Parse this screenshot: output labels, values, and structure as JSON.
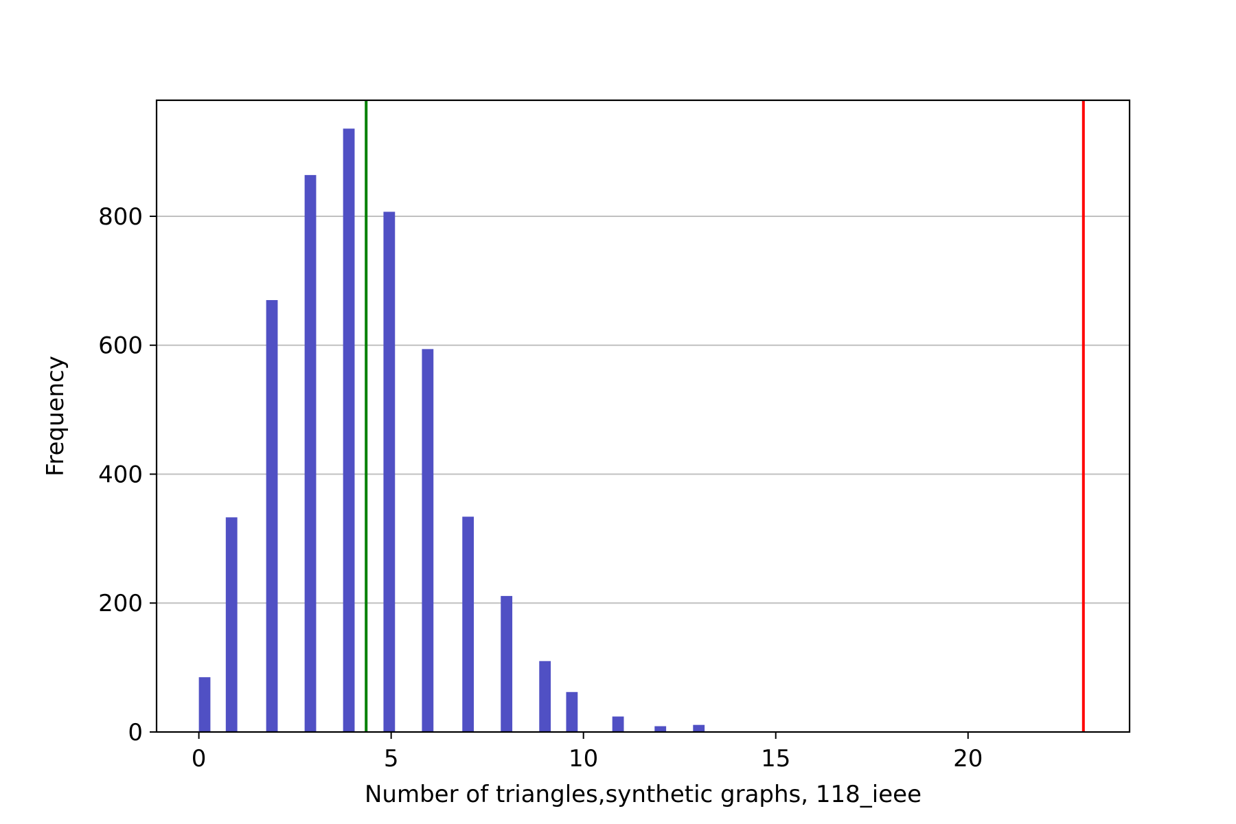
{
  "chart_data": {
    "type": "bar",
    "title": "",
    "xlabel": "Number of triangles,synthetic graphs, 118_ieee",
    "ylabel": "Frequency",
    "xlim": [
      -1.1,
      24.2
    ],
    "ylim": [
      0,
      980
    ],
    "xticks": [
      0,
      5,
      10,
      15,
      20
    ],
    "yticks": [
      0,
      200,
      400,
      600,
      800
    ],
    "grid": "horizontal",
    "bar_color": "#5050c4",
    "bar_width": 0.3,
    "bars": [
      {
        "x": 0.15,
        "value": 85
      },
      {
        "x": 0.85,
        "value": 333
      },
      {
        "x": 1.9,
        "value": 670
      },
      {
        "x": 2.9,
        "value": 864
      },
      {
        "x": 3.9,
        "value": 936
      },
      {
        "x": 4.95,
        "value": 807
      },
      {
        "x": 5.95,
        "value": 594
      },
      {
        "x": 7.0,
        "value": 334
      },
      {
        "x": 8.0,
        "value": 211
      },
      {
        "x": 9.0,
        "value": 110
      },
      {
        "x": 9.7,
        "value": 62
      },
      {
        "x": 10.9,
        "value": 24
      },
      {
        "x": 12.0,
        "value": 9
      },
      {
        "x": 13.0,
        "value": 11
      }
    ],
    "vertical_lines": [
      {
        "x": 4.35,
        "color": "#008000"
      },
      {
        "x": 23.0,
        "color": "#ff0000"
      }
    ]
  }
}
